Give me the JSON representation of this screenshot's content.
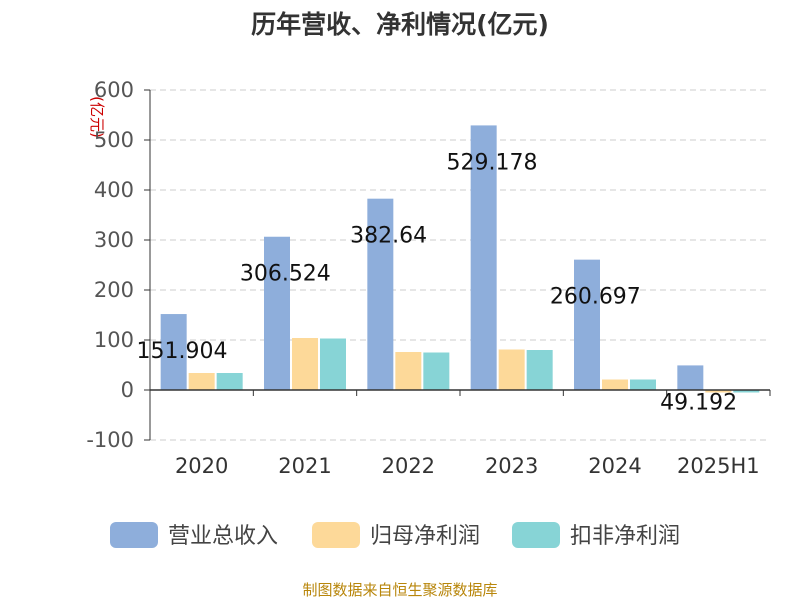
{
  "chart_data": {
    "type": "bar",
    "title": "历年营收、净利情况(亿元)",
    "unit_label": "(亿元)",
    "categories": [
      "2020",
      "2021",
      "2022",
      "2023",
      "2024",
      "2025H1"
    ],
    "series": [
      {
        "name": "营业总收入",
        "color": "#8eaedb",
        "values": [
          151.904,
          306.524,
          382.64,
          529.178,
          260.697,
          49.192
        ]
      },
      {
        "name": "归母净利润",
        "color": "#fdd999",
        "values": [
          34,
          104,
          76,
          81,
          21,
          -5
        ]
      },
      {
        "name": "扣非净利润",
        "color": "#87d4d6",
        "values": [
          34,
          103,
          75,
          80,
          21,
          -5
        ]
      }
    ],
    "data_labels": [
      "151.904",
      "306.524",
      "382.64",
      "529.178",
      "260.697",
      "49.192"
    ],
    "yticks": [
      "600",
      "500",
      "400",
      "300",
      "200",
      "100",
      "0",
      "-100"
    ],
    "ylim": [
      -100,
      600
    ],
    "grid": true,
    "legend_position": "bottom"
  },
  "source": "制图数据来自恒生聚源数据库"
}
